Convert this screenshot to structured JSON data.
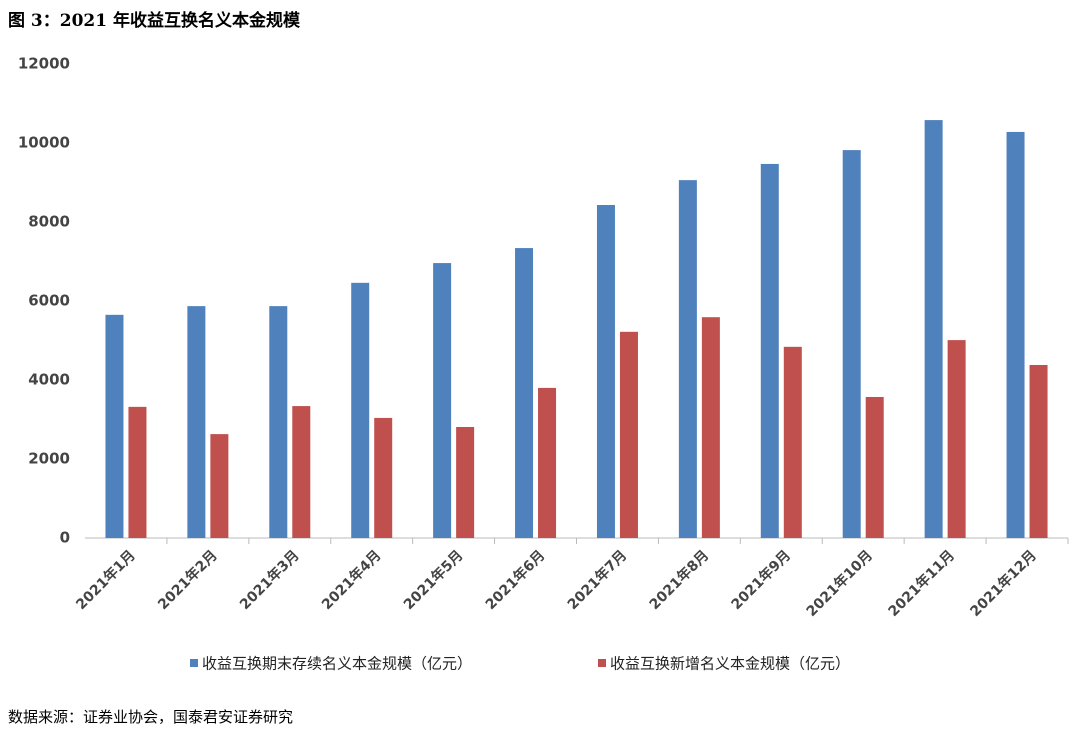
{
  "chart_data": {
    "type": "bar",
    "title": "图 3：2021 年收益互换名义本金规模",
    "source": "数据来源：证券业协会，国泰君安证券研究",
    "categories": [
      "2021年1月",
      "2021年2月",
      "2021年3月",
      "2021年4月",
      "2021年5月",
      "2021年6月",
      "2021年7月",
      "2021年8月",
      "2021年9月",
      "2021年10月",
      "2021年11月",
      "2021年12月"
    ],
    "series": [
      {
        "name": "收益互换期末存续名义本金规模（亿元）",
        "color": "#4f81bd",
        "values": [
          5650,
          5870,
          5870,
          6460,
          6960,
          7340,
          8430,
          9060,
          9470,
          9820,
          10580,
          10280
        ]
      },
      {
        "name": "收益互换新增名义本金规模（亿元）",
        "color": "#c0504d",
        "values": [
          3320,
          2630,
          3340,
          3040,
          2810,
          3800,
          5220,
          5590,
          4840,
          3570,
          5010,
          4380
        ]
      }
    ],
    "ylim": [
      0,
      12000
    ],
    "yticks": [
      0,
      2000,
      4000,
      6000,
      8000,
      10000,
      12000
    ],
    "grid": false
  }
}
